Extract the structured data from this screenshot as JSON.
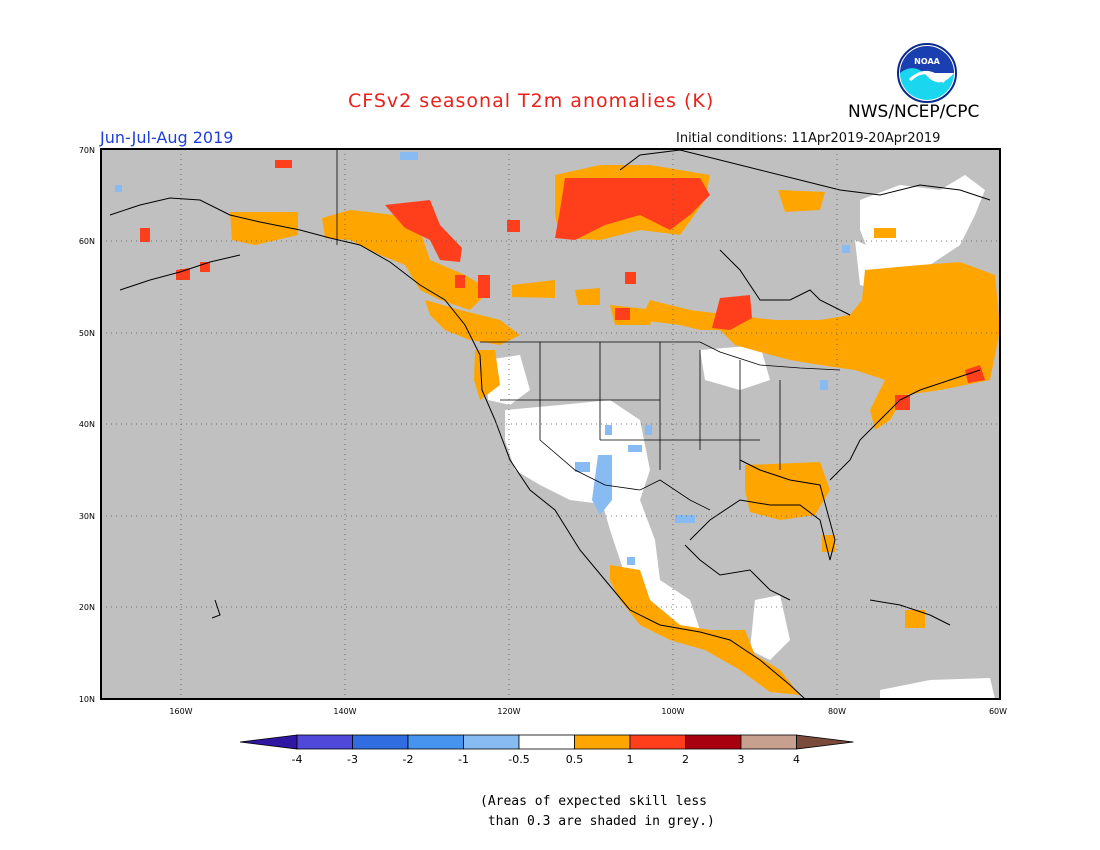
{
  "header": {
    "title": "CFSv2 seasonal T2m anomalies (K)",
    "period": "Jun-Jul-Aug 2019",
    "initial_conditions": "Initial conditions: 11Apr2019-20Apr2019",
    "agency": "NWS/NCEP/CPC",
    "logo_text": "NOAA"
  },
  "colors": {
    "title": "#e8211b",
    "period": "#1f3fd8",
    "skill_grey": "#c0c0c0",
    "ocean": "#c0c0c0"
  },
  "map": {
    "lat_labels": [
      "70N",
      "60N",
      "50N",
      "40N",
      "30N",
      "20N",
      "10N"
    ],
    "lon_labels": [
      "160W",
      "140W",
      "120W",
      "100W",
      "80W",
      "60W"
    ],
    "lon_range": [
      -172,
      -60
    ],
    "lat_range": [
      10,
      70
    ]
  },
  "legend": {
    "tick_labels": [
      "-4",
      "-3",
      "-2",
      "-1",
      "-0.5",
      "0.5",
      "1",
      "2",
      "3",
      "4"
    ],
    "bin_colors": [
      "#2f17a3",
      "#5048d8",
      "#2f6de0",
      "#4694ee",
      "#87bbf2",
      "#ffffff",
      "#ffa500",
      "#ff3e1c",
      "#a8000e",
      "#c7a090",
      "#7a4a3a"
    ],
    "note": "(Areas of expected skill less\n than 0.3 are shaded in grey.)"
  }
}
